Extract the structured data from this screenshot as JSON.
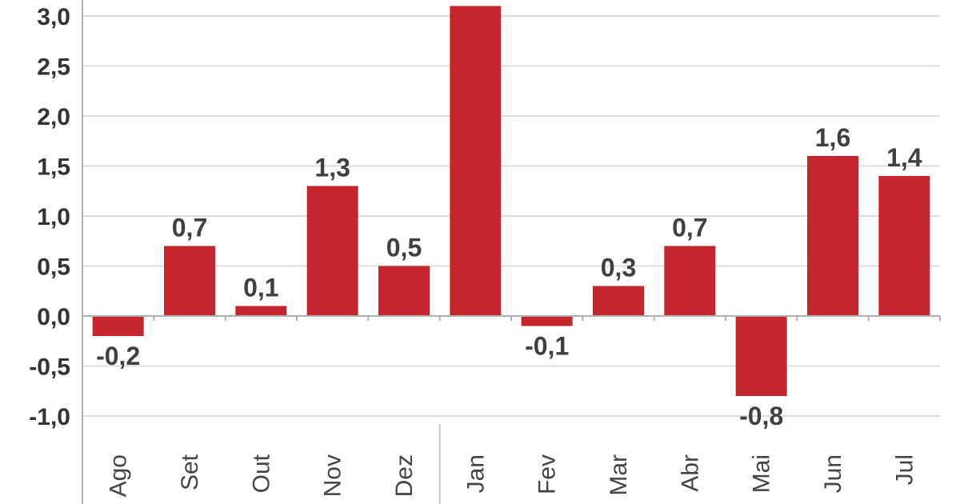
{
  "chart_data": {
    "type": "bar",
    "categories": [
      "Ago",
      "Set",
      "Out",
      "Nov",
      "Dez",
      "Jan",
      "Fev",
      "Mar",
      "Abr",
      "Mai",
      "Jun",
      "Jul"
    ],
    "values": [
      -0.2,
      0.7,
      0.1,
      1.3,
      0.5,
      3.1,
      -0.1,
      0.3,
      0.7,
      -0.8,
      1.6,
      1.4
    ],
    "data_labels": [
      "-0,2",
      "0,7",
      "0,1",
      "1,3",
      "0,5",
      "",
      "-0,1",
      "0,3",
      "0,7",
      "-0,8",
      "1,6",
      "1,4"
    ],
    "y_ticks": [
      3.0,
      2.5,
      2.0,
      1.5,
      1.0,
      0.5,
      0.0,
      -0.5,
      -1.0
    ],
    "y_tick_labels": [
      "3,0",
      "2,5",
      "2,0",
      "1,5",
      "1,0",
      "0,5",
      "0,0",
      "-0,5",
      "-1,0"
    ],
    "ylim": [
      -1.0,
      3.0
    ],
    "grid": true,
    "legend": "none",
    "title": "",
    "xlabel": "",
    "ylabel": "",
    "colors": {
      "bar": "#c4262e",
      "grid": "#dddddd",
      "axis": "#b0b0b0",
      "separator": "#c8c8c8"
    }
  }
}
